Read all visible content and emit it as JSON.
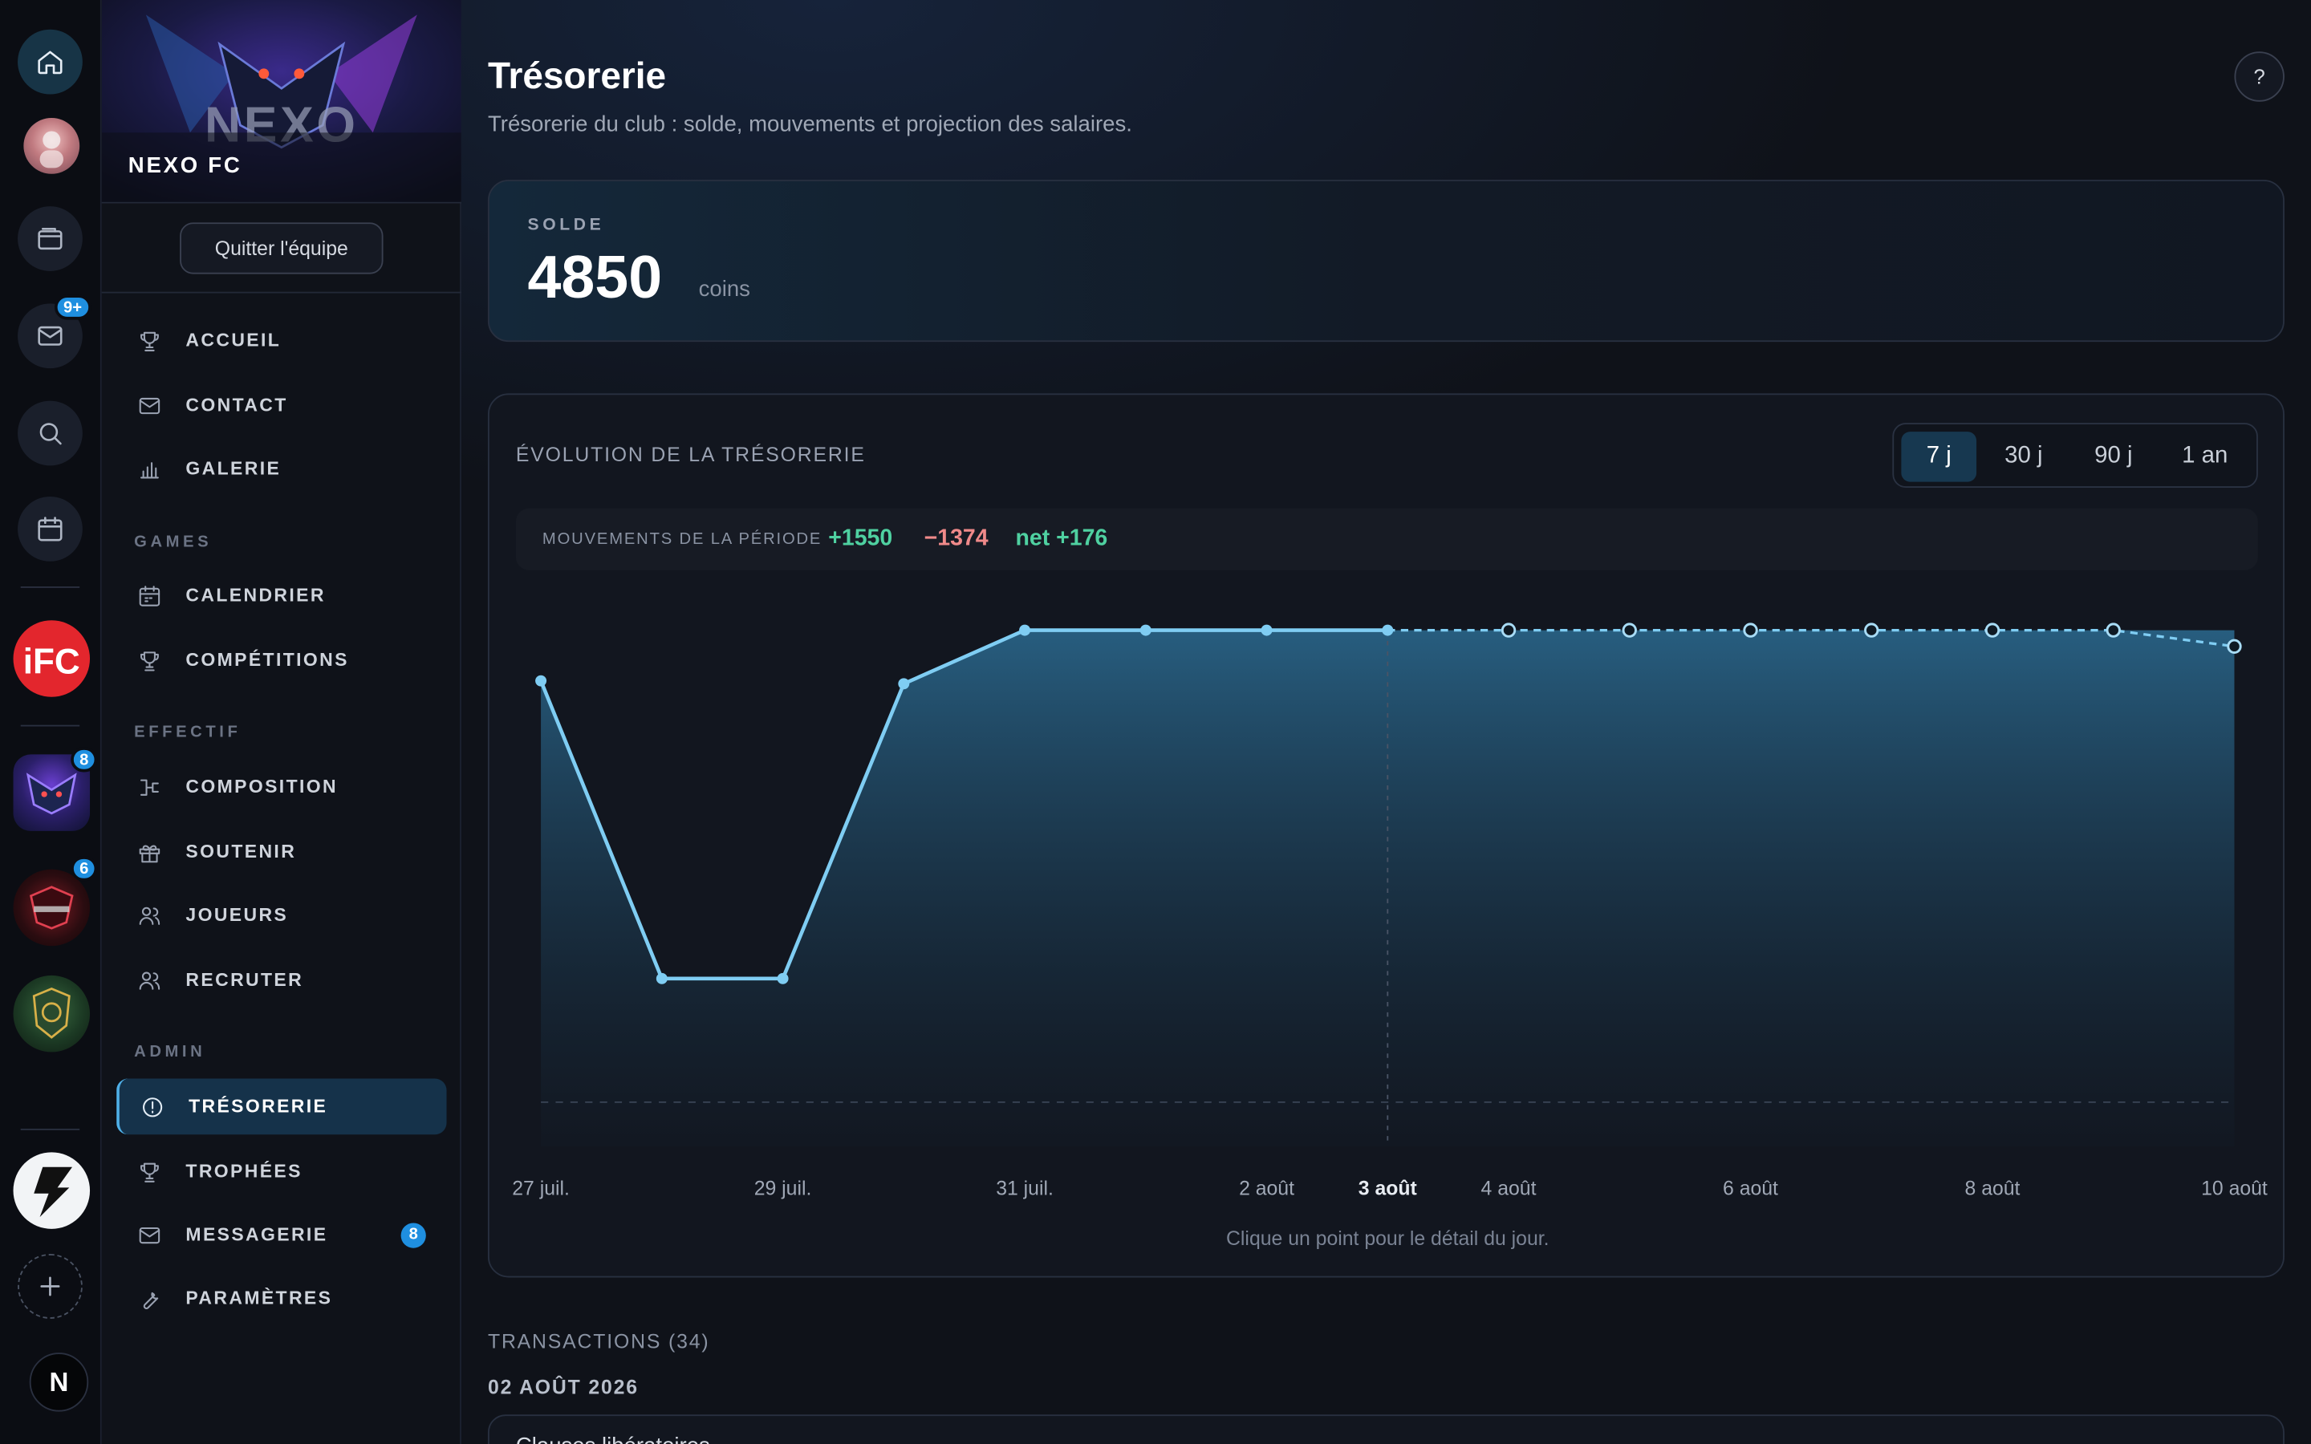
{
  "rail": {
    "notifications_badge": "9+",
    "team_badges": [
      "8",
      "6"
    ],
    "n_avatar_letter": "N"
  },
  "sidebar": {
    "team_name": "NEXO FC",
    "quit_button": "Quitter l'équipe",
    "items_main": [
      {
        "label": "ACCUEIL",
        "icon": "trophy-icon"
      },
      {
        "label": "CONTACT",
        "icon": "mail-icon"
      },
      {
        "label": "GALERIE",
        "icon": "bar-chart-icon"
      }
    ],
    "section_games": "GAMES",
    "items_games": [
      {
        "label": "CALENDRIER",
        "icon": "calendar-icon"
      },
      {
        "label": "COMPÉTITIONS",
        "icon": "trophy-icon"
      }
    ],
    "section_effectif": "EFFECTIF",
    "items_effectif": [
      {
        "label": "COMPOSITION",
        "icon": "bracket-icon"
      },
      {
        "label": "SOUTENIR",
        "icon": "gift-icon"
      },
      {
        "label": "JOUEURS",
        "icon": "users-icon"
      },
      {
        "label": "RECRUTER",
        "icon": "users-icon"
      }
    ],
    "section_admin": "ADMIN",
    "items_admin": [
      {
        "label": "TRÉSORERIE",
        "icon": "coin-icon",
        "active": true
      },
      {
        "label": "TROPHÉES",
        "icon": "trophy-icon"
      },
      {
        "label": "MESSAGERIE",
        "icon": "mail-icon",
        "badge": "8"
      },
      {
        "label": "PARAMÈTRES",
        "icon": "wrench-icon"
      }
    ]
  },
  "page": {
    "title": "Trésorerie",
    "subtitle": "Trésorerie du club : solde, mouvements et projection des salaires.",
    "help": "?"
  },
  "balance": {
    "label": "SOLDE",
    "value": "4850",
    "unit": "coins"
  },
  "evolution": {
    "title": "ÉVOLUTION DE LA TRÉSORERIE",
    "ranges": [
      "7 j",
      "30 j",
      "90 j",
      "1 an"
    ],
    "selected_range": "7 j",
    "movements_label": "MOUVEMENTS DE LA PÉRIODE",
    "plus": "+1550",
    "minus": "−1374",
    "net": "net +176",
    "hint": "Clique un point pour le détail du jour."
  },
  "chart_data": {
    "type": "area",
    "x": [
      "27 juil.",
      "28 juil.",
      "29 juil.",
      "30 juil.",
      "31 juil.",
      "1 août",
      "2 août",
      "3 août",
      "4 août",
      "5 août",
      "6 août",
      "7 août",
      "8 août",
      "9 août",
      "10 août"
    ],
    "x_tick_labels": [
      "27 juil.",
      "29 juil.",
      "31 juil.",
      "2 août",
      "3 août",
      "4 août",
      "6 août",
      "8 août",
      "10 août"
    ],
    "today": "3 août",
    "series": [
      {
        "values": [
          4330,
          1270,
          1270,
          4300,
          4850,
          4850,
          4850,
          4850,
          4850,
          4850,
          4850,
          4850,
          4850,
          4850,
          4850
        ],
        "historical_until": "3 août"
      }
    ],
    "ylim": [
      0,
      5300
    ],
    "note": "projection"
  },
  "transactions": {
    "label": "TRANSACTIONS (34)",
    "date": "02 AOÛT 2026",
    "first_item": "Clauses libératoires"
  }
}
